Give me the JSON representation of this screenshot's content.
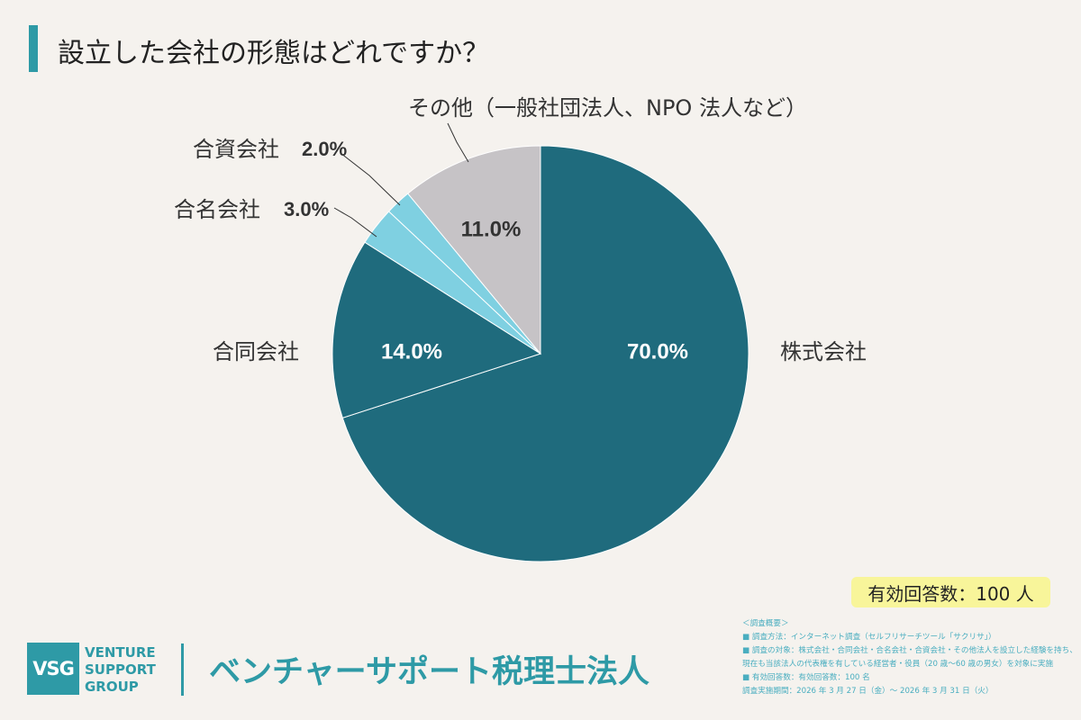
{
  "header": {
    "title": "設立した会社の形態はどれですか？"
  },
  "chart_data": {
    "type": "pie",
    "title": "設立した会社の形態はどれですか？",
    "slices": [
      {
        "label": "株式会社",
        "value": 70.0,
        "value_label": "70.0%",
        "color": "#1f6b7d"
      },
      {
        "label": "合同会社",
        "value": 14.0,
        "value_label": "14.0%",
        "color": "#1f6b7d"
      },
      {
        "label": "合名会社",
        "value": 3.0,
        "value_label": "3.0%",
        "color": "#7fd0e1"
      },
      {
        "label": "合資会社",
        "value": 2.0,
        "value_label": "2.0%",
        "color": "#7fd0e1"
      },
      {
        "label": "その他（一般社団法人、NPO 法人など）",
        "value": 11.0,
        "value_label": "11.0%",
        "color": "#c6c3c6"
      }
    ],
    "start_angle": "12 o'clock",
    "direction": "clockwise"
  },
  "badge": {
    "text": "有効回答数：100 人"
  },
  "survey_notes": [
    "＜調査概要＞",
    "■ 調査方法：インターネット調査（セルフリサーチツール「サクリサ」）",
    "■ 調査の対象：株式会社・合同会社・合名会社・合資会社・その他法人を設立した経験を持ち、",
    "現在も当該法人の代表権を有している経営者・役員（20 歳〜60 歳の男女）を対象に実施",
    "■ 有効回答数：有効回答数：100 名",
    "調査実施期間：2026 年 3 月 27 日（金）〜 2026 年 3 月 31 日（火）"
  ],
  "footer": {
    "logo_mark": "VSG",
    "logo_words": [
      "VENTURE",
      "SUPPORT",
      "GROUP"
    ],
    "brand_name": "ベンチャーサポート税理士法人"
  }
}
